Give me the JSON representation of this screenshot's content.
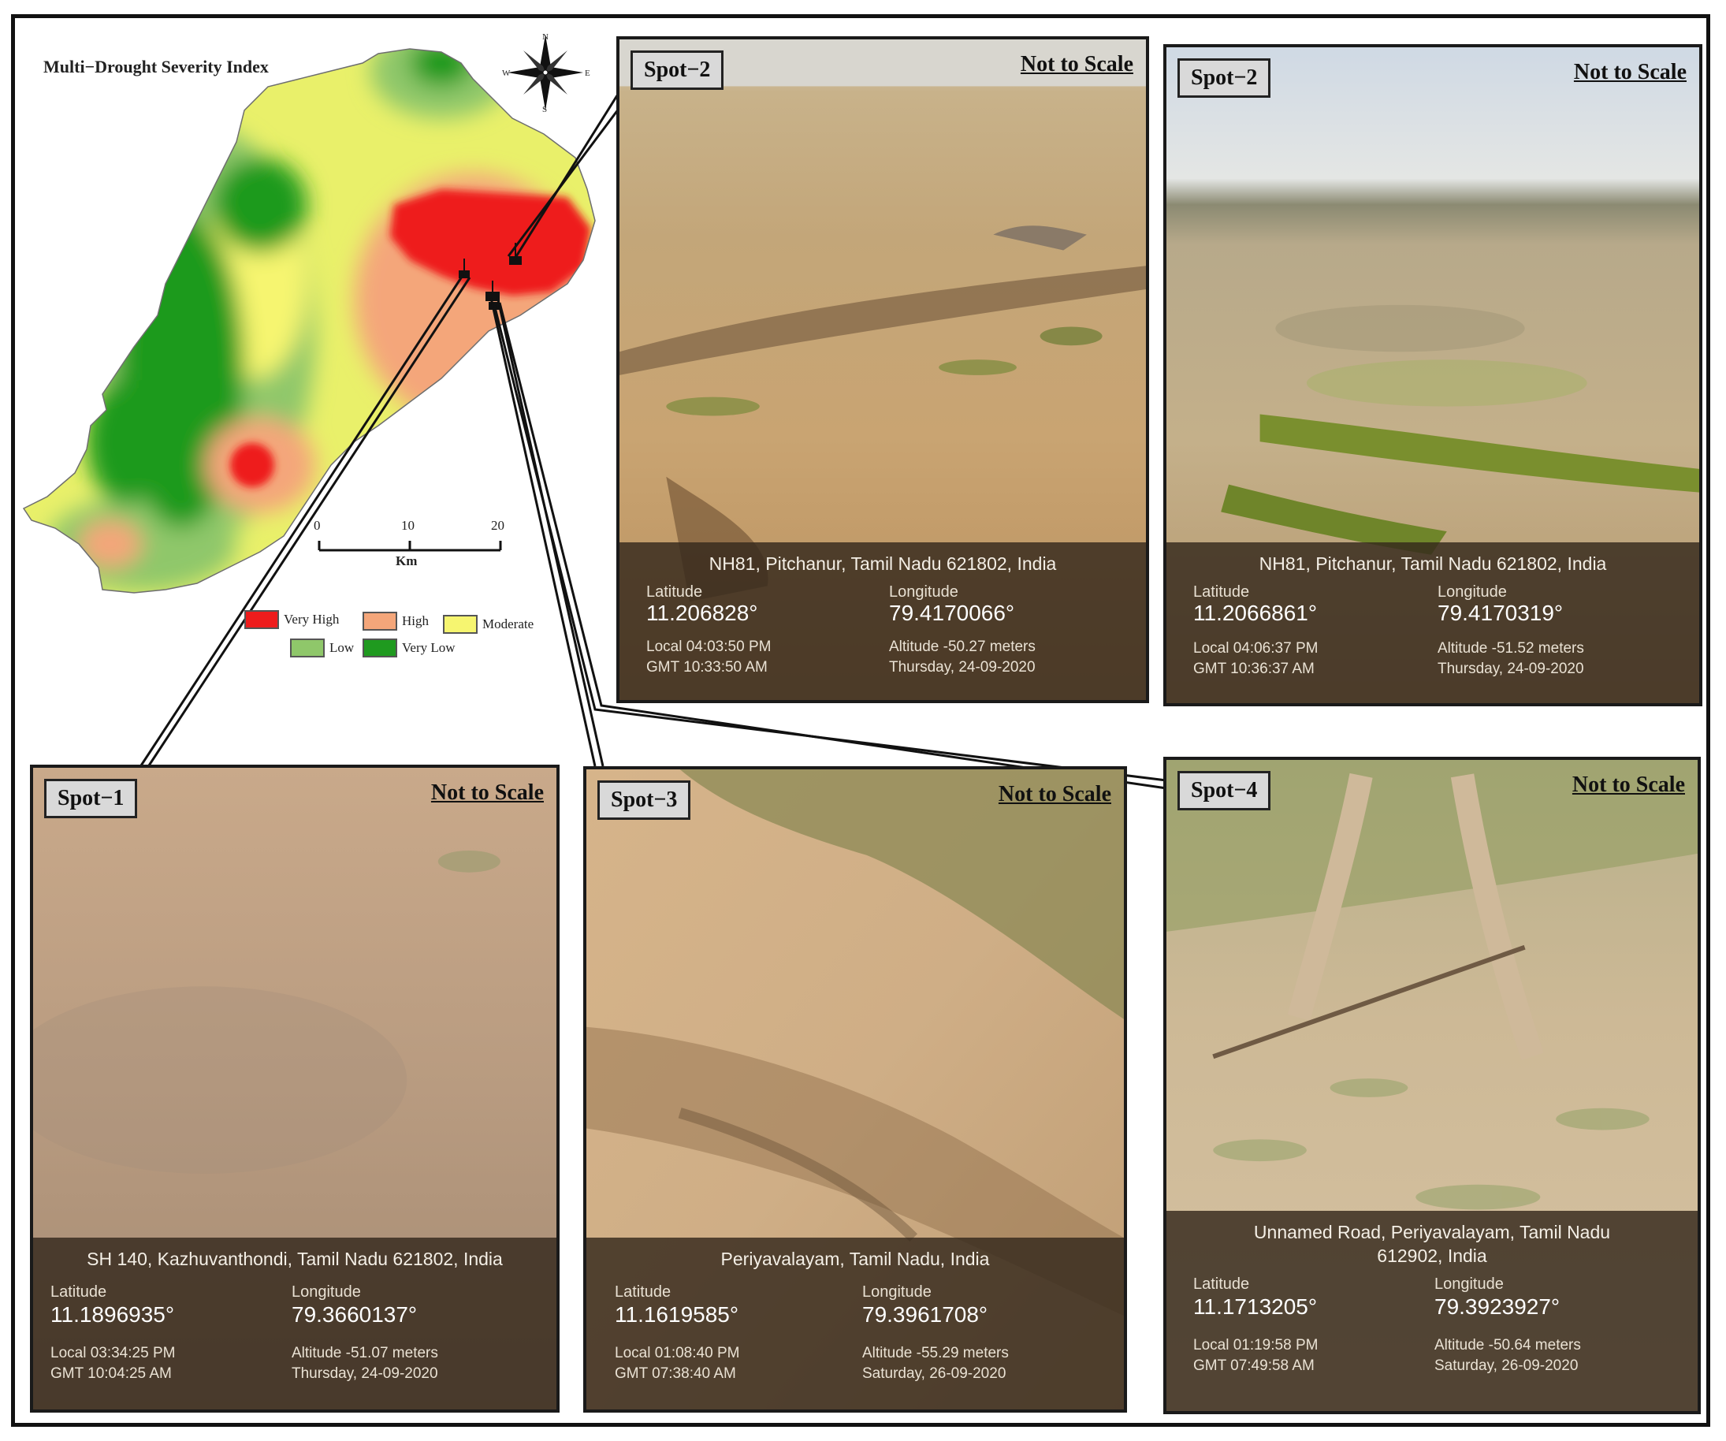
{
  "map": {
    "title": "Multi−Drought Severity Index",
    "compass": {
      "n": "N",
      "s": "S",
      "e": "E",
      "w": "W"
    },
    "scale": {
      "t0": "0",
      "t1": "10",
      "t2": "20",
      "unit": "Km"
    },
    "legend": [
      {
        "label": "Very High",
        "color": "#ee1c1c"
      },
      {
        "label": "High",
        "color": "#f4a67a"
      },
      {
        "label": "Moderate",
        "color": "#f6f570"
      },
      {
        "label": "Low",
        "color": "#8fc76a"
      },
      {
        "label": "Very Low",
        "color": "#1f9a1f"
      }
    ]
  },
  "photos": {
    "p1": {
      "spot": "Spot−2",
      "scale_note": "Not to Scale",
      "address": "NH81, Pitchanur, Tamil Nadu 621802, India",
      "lat_label": "Latitude",
      "lat": "11.206828°",
      "lon_label": "Longitude",
      "lon": "79.4170066°",
      "local": "Local 04:03:50 PM",
      "gmt": "GMT 10:33:50 AM",
      "altitude": "Altitude -50.27 meters",
      "date": "Thursday, 24-09-2020"
    },
    "p2": {
      "spot": "Spot−2",
      "scale_note": "Not to Scale",
      "address": "NH81, Pitchanur, Tamil Nadu 621802, India",
      "lat_label": "Latitude",
      "lat": "11.2066861°",
      "lon_label": "Longitude",
      "lon": "79.4170319°",
      "local": "Local 04:06:37 PM",
      "gmt": "GMT 10:36:37 AM",
      "altitude": "Altitude -51.52 meters",
      "date": "Thursday, 24-09-2020"
    },
    "p3": {
      "spot": "Spot−1",
      "scale_note": "Not to Scale",
      "address": "SH 140, Kazhuvanthondi, Tamil Nadu 621802, India",
      "lat_label": "Latitude",
      "lat": "11.1896935°",
      "lon_label": "Longitude",
      "lon": "79.3660137°",
      "local": "Local 03:34:25 PM",
      "gmt": "GMT 10:04:25 AM",
      "altitude": "Altitude -51.07 meters",
      "date": "Thursday, 24-09-2020"
    },
    "p4": {
      "spot": "Spot−3",
      "scale_note": "Not to Scale",
      "address": "Periyavalayam, Tamil Nadu, India",
      "lat_label": "Latitude",
      "lat": "11.1619585°",
      "lon_label": "Longitude",
      "lon": "79.3961708°",
      "local": "Local 01:08:40 PM",
      "gmt": "GMT 07:38:40 AM",
      "altitude": "Altitude -55.29 meters",
      "date": "Saturday, 26-09-2020"
    },
    "p5": {
      "spot": "Spot−4",
      "scale_note": "Not to Scale",
      "address": "Unnamed Road, Periyavalayam, Tamil Nadu 612902, India",
      "lat_label": "Latitude",
      "lat": "11.1713205°",
      "lon_label": "Longitude",
      "lon": "79.3923927°",
      "local": "Local 01:19:58 PM",
      "gmt": "GMT 07:49:58 AM",
      "altitude": "Altitude -50.64 meters",
      "date": "Saturday, 26-09-2020"
    }
  }
}
